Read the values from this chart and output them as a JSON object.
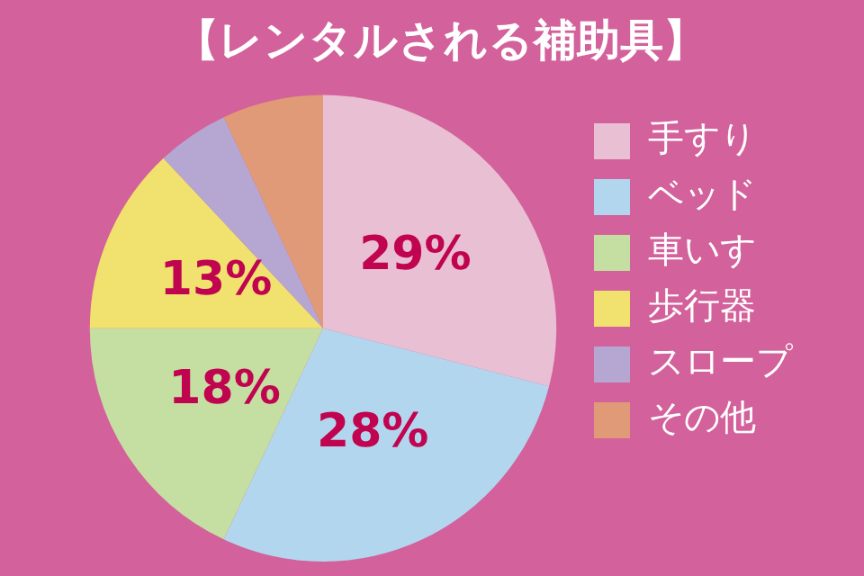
{
  "chart_data": {
    "type": "pie",
    "title": "【レンタルされる補助具】",
    "categories": [
      "手すり",
      "ベッド",
      "車いす",
      "歩行器",
      "スロープ",
      "その他"
    ],
    "values": [
      29,
      28,
      18,
      13,
      5,
      7
    ],
    "value_labels": [
      "29%",
      "28%",
      "18%",
      "13%",
      null,
      null
    ],
    "colors": [
      "#e9bfd3",
      "#b3d6ef",
      "#c5dea2",
      "#f1e16f",
      "#b5a7d1",
      "#e19a78"
    ],
    "legend": "right"
  }
}
